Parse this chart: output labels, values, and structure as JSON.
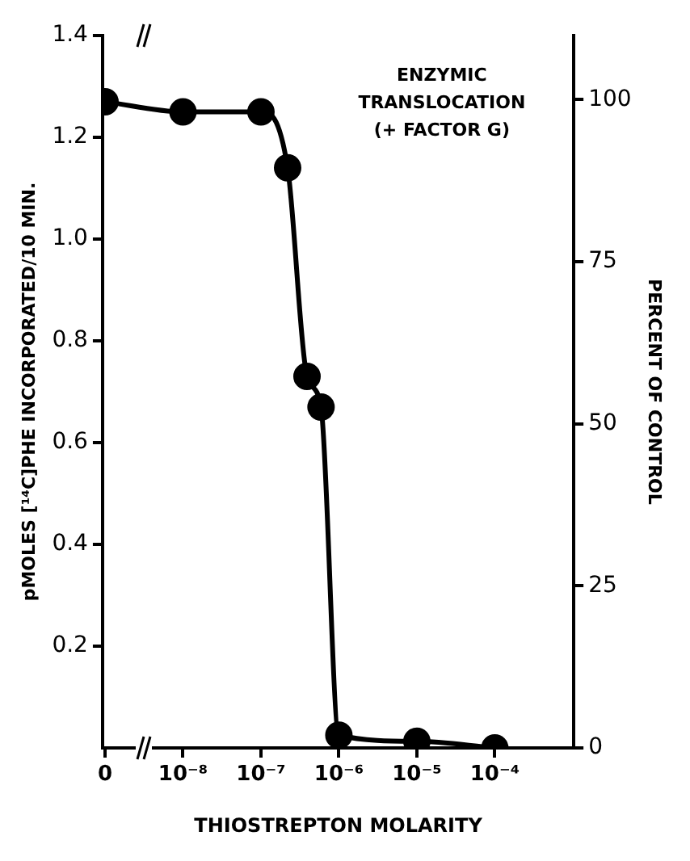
{
  "chart_data": {
    "type": "line",
    "title": "ENZYMIC\nTRANSLOCATION\n(+ FACTOR G)",
    "xlabel": "THIOSTREPTON MOLARITY",
    "ylabel": "pMOLES [¹⁴C]PHE INCORPORATED/10 MIN.",
    "y2label": "PERCENT OF CONTROL",
    "x": [
      1e-09,
      1e-08,
      1e-07,
      2.2e-07,
      3.9e-07,
      5.9e-07,
      1e-06,
      1e-05,
      0.0001
    ],
    "series": [
      {
        "color": "#000000",
        "values": [
          1.27,
          1.25,
          1.25,
          1.14,
          0.73,
          0.67,
          0.025,
          0.013,
          0.0
        ]
      }
    ],
    "log": "x",
    "xlim": [
      9.3e-10,
      0.00103
    ],
    "xticks": [
      {
        "value": 1e-09,
        "label": "0"
      },
      {
        "value": 1e-08,
        "label": "10⁻⁸"
      },
      {
        "value": 1e-07,
        "label": "10⁻⁷"
      },
      {
        "value": 1e-06,
        "label": "10⁻⁶"
      },
      {
        "value": 1e-05,
        "label": "10⁻⁵"
      },
      {
        "value": 0.0001,
        "label": "10⁻⁴"
      }
    ],
    "ylim": [
      0,
      1.4
    ],
    "yticks": [
      0.2,
      0.4,
      0.6,
      0.8,
      {
        "value": 1,
        "label": "1.0"
      },
      1.2,
      1.4
    ],
    "y2lim": [
      0,
      109.9
    ],
    "y2ticks": [
      0,
      25,
      50,
      75,
      100
    ],
    "marker": "circle",
    "line_style": "solid",
    "grid": false,
    "legend": false
  }
}
